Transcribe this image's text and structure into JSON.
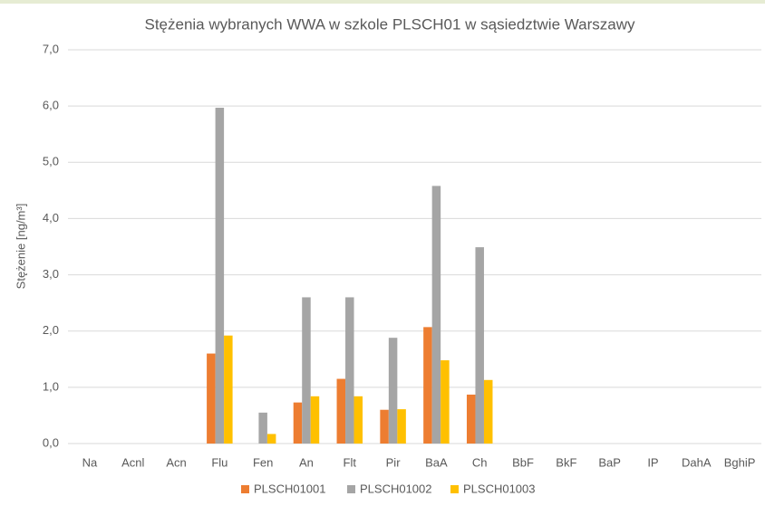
{
  "chart_data": {
    "type": "bar",
    "title": "Stężenia wybranych WWA w szkole PLSCH01 w sąsiedztwie Warszawy",
    "y_label": "Stężenie [ng/m³]",
    "categories": [
      "Na",
      "Acnl",
      "Acn",
      "Flu",
      "Fen",
      "An",
      "Flt",
      "Pir",
      "BaA",
      "Ch",
      "BbF",
      "BkF",
      "BaP",
      "IP",
      "DahA",
      "BghiP"
    ],
    "series": [
      {
        "name": "PLSCH01001",
        "color": "#ed7d31",
        "values": [
          0,
          0,
          0,
          1.6,
          0,
          0.73,
          1.15,
          0.6,
          2.07,
          0.87,
          0,
          0,
          0,
          0,
          0,
          0
        ]
      },
      {
        "name": "PLSCH01002",
        "color": "#a5a5a5",
        "values": [
          0,
          0,
          0,
          5.97,
          0.55,
          2.6,
          2.6,
          1.88,
          4.58,
          3.49,
          0,
          0,
          0,
          0,
          0,
          0
        ]
      },
      {
        "name": "PLSCH01003",
        "color": "#ffc000",
        "values": [
          0,
          0,
          0,
          1.92,
          0.17,
          0.84,
          0.84,
          0.61,
          1.48,
          1.13,
          0,
          0,
          0,
          0,
          0,
          0
        ]
      }
    ],
    "ylim": [
      0,
      7
    ],
    "yticks": [
      {
        "value": 0,
        "label": "0,0"
      },
      {
        "value": 1,
        "label": "1,0"
      },
      {
        "value": 2,
        "label": "2,0"
      },
      {
        "value": 3,
        "label": "3,0"
      },
      {
        "value": 4,
        "label": "4,0"
      },
      {
        "value": 5,
        "label": "5,0"
      },
      {
        "value": 6,
        "label": "6,0"
      },
      {
        "value": 7,
        "label": "7,0"
      }
    ],
    "grid": true,
    "legend": "bottom"
  }
}
